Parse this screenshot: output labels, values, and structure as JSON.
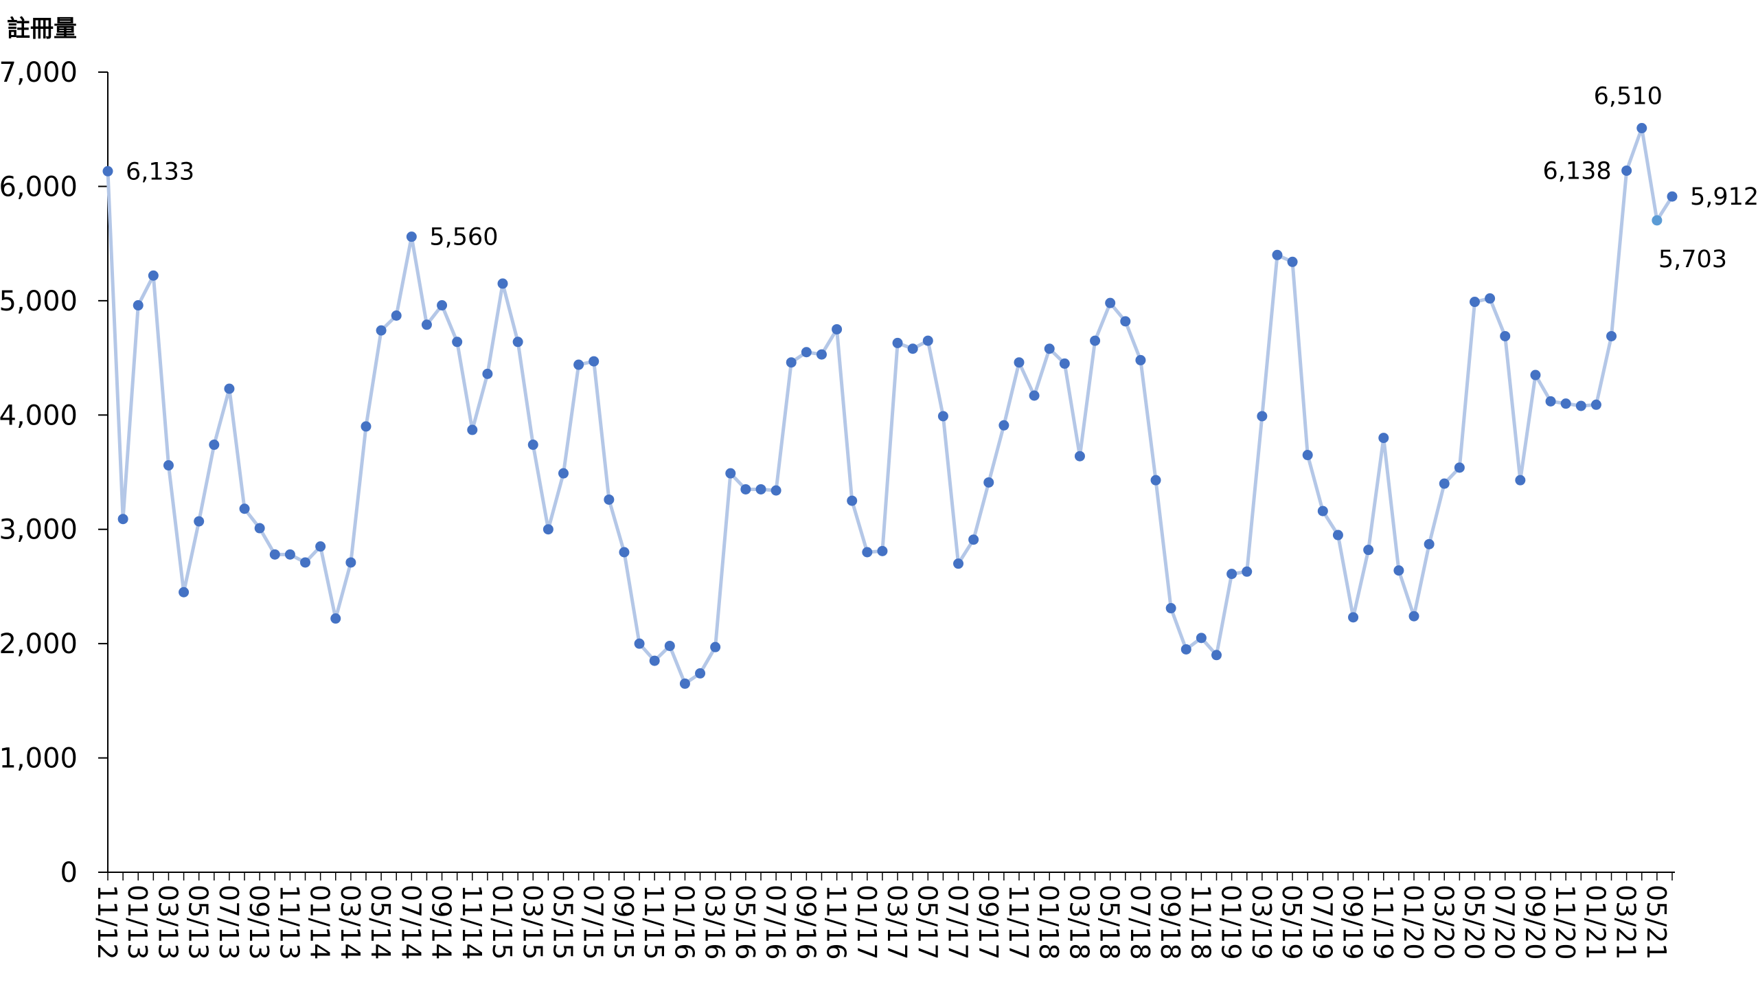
{
  "chart_data": {
    "type": "line",
    "ylabel": "註冊量",
    "ylim": [
      0,
      7000
    ],
    "yticks": [
      0,
      1000,
      2000,
      3000,
      4000,
      5000,
      6000,
      7000
    ],
    "ytick_labels": [
      "0",
      "1,000",
      "2,000",
      "3,000",
      "4,000",
      "5,000",
      "6,000",
      "7,000"
    ],
    "x_tick_labels": [
      "11/12",
      "01/13",
      "03/13",
      "05/13",
      "07/13",
      "09/13",
      "11/13",
      "01/14",
      "03/14",
      "05/14",
      "07/14",
      "09/14",
      "11/14",
      "01/15",
      "03/15",
      "05/15",
      "07/15",
      "09/15",
      "11/15",
      "01/16",
      "03/16",
      "05/16",
      "07/16",
      "09/16",
      "11/16",
      "01/17",
      "03/17",
      "05/17",
      "07/17",
      "09/17",
      "11/17",
      "01/18",
      "03/18",
      "05/18",
      "07/18",
      "09/18",
      "11/18",
      "01/19",
      "03/19",
      "05/19",
      "07/19",
      "09/19",
      "11/19",
      "01/20",
      "03/20",
      "05/20",
      "07/20",
      "09/20",
      "11/20",
      "01/21",
      "03/21",
      "05/21"
    ],
    "x": [
      "11/12",
      "12/12",
      "01/13",
      "02/13",
      "03/13",
      "04/13",
      "05/13",
      "06/13",
      "07/13",
      "08/13",
      "09/13",
      "10/13",
      "11/13",
      "12/13",
      "01/14",
      "02/14",
      "03/14",
      "04/14",
      "05/14",
      "06/14",
      "07/14",
      "08/14",
      "09/14",
      "10/14",
      "11/14",
      "12/14",
      "01/15",
      "02/15",
      "03/15",
      "04/15",
      "05/15",
      "06/15",
      "07/15",
      "08/15",
      "09/15",
      "10/15",
      "11/15",
      "12/15",
      "01/16",
      "02/16",
      "03/16",
      "04/16",
      "05/16",
      "06/16",
      "07/16",
      "08/16",
      "09/16",
      "10/16",
      "11/16",
      "12/16",
      "01/17",
      "02/17",
      "03/17",
      "04/17",
      "05/17",
      "06/17",
      "07/17",
      "08/17",
      "09/17",
      "10/17",
      "11/17",
      "12/17",
      "01/18",
      "02/18",
      "03/18",
      "04/18",
      "05/18",
      "06/18",
      "07/18",
      "08/18",
      "09/18",
      "10/18",
      "11/18",
      "12/18",
      "01/19",
      "02/19",
      "03/19",
      "04/19",
      "05/19",
      "06/19",
      "07/19",
      "08/19",
      "09/19",
      "10/19",
      "11/19",
      "12/19",
      "01/20",
      "02/20",
      "03/20",
      "04/20",
      "05/20",
      "06/20",
      "07/20",
      "08/20",
      "09/20",
      "10/20",
      "11/20",
      "12/20",
      "01/21",
      "02/21",
      "03/21",
      "04/21",
      "05/21",
      "06/21"
    ],
    "series": [
      {
        "color": "#4472c4",
        "line_color": "#b4c7e7",
        "values": [
          6133,
          3090,
          4960,
          5220,
          3560,
          2450,
          3070,
          3740,
          4230,
          3180,
          3010,
          2780,
          2780,
          2710,
          2850,
          2220,
          2710,
          3900,
          4740,
          4870,
          5560,
          4790,
          4960,
          4640,
          3870,
          4360,
          5150,
          4640,
          3740,
          3000,
          3490,
          4440,
          4470,
          3260,
          2800,
          2000,
          1850,
          1980,
          1650,
          1740,
          1970,
          3490,
          3350,
          3350,
          3340,
          4460,
          4550,
          4530,
          4750,
          3250,
          2800,
          2810,
          4630,
          4580,
          4650,
          3990,
          2700,
          2910,
          3410,
          3910,
          4460,
          4170,
          4580,
          4450,
          3640,
          4650,
          4980,
          4820,
          4480,
          3430,
          2310,
          1950,
          2050,
          1900,
          2610,
          2630,
          3990,
          5400,
          5340,
          3650,
          3160,
          2950,
          2230,
          2820,
          3800,
          2640,
          2240,
          2870,
          3400,
          3540,
          4990,
          5020,
          4690,
          3430,
          4350,
          4120,
          4100,
          4080,
          4090,
          4690,
          6138,
          6510,
          5703,
          5912
        ]
      }
    ],
    "data_labels": [
      {
        "index": 0,
        "text": "6,133",
        "pos": "right"
      },
      {
        "index": 20,
        "text": "5,560",
        "pos": "right"
      },
      {
        "index": 100,
        "text": "6,138",
        "pos": "left"
      },
      {
        "index": 101,
        "text": "6,510",
        "pos": "above"
      },
      {
        "index": 102,
        "text": "5,703",
        "pos": "below"
      },
      {
        "index": 103,
        "text": "5,912",
        "pos": "right"
      }
    ],
    "grid": false,
    "legend": "none"
  }
}
